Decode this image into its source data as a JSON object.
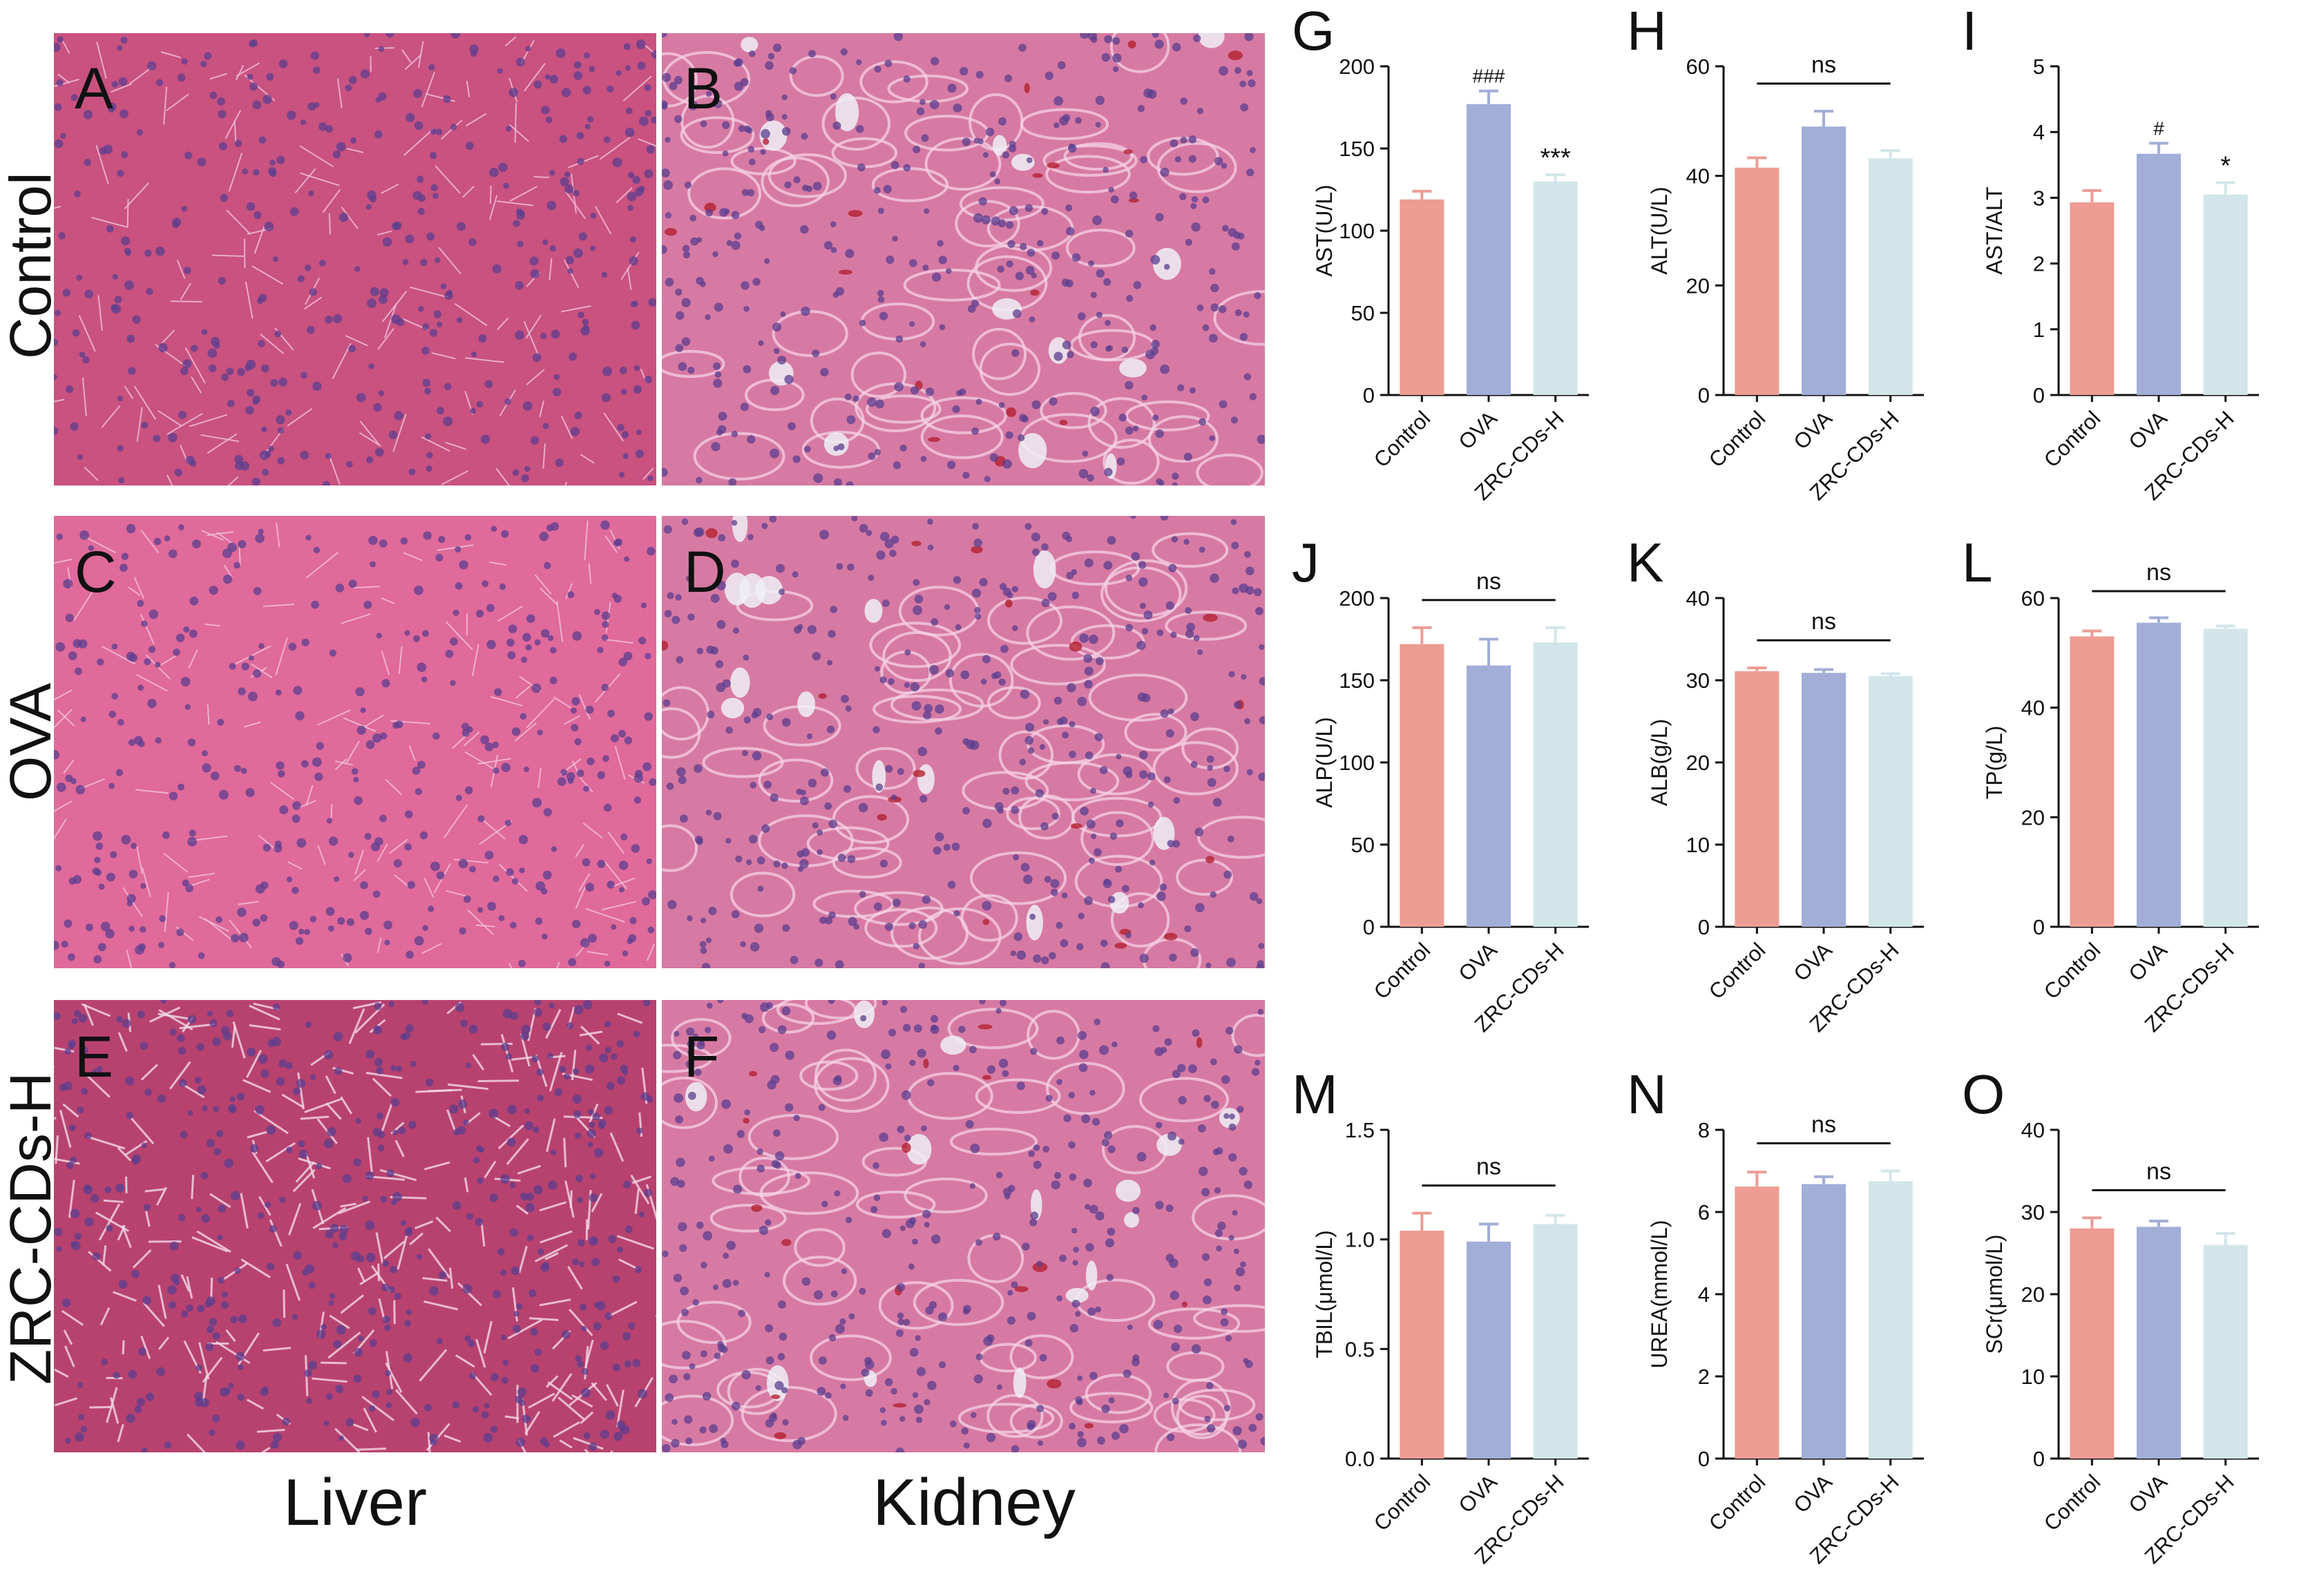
{
  "colors": {
    "control": "#ec9c93",
    "ova": "#a2aed7",
    "zrc": "#d2e6ea",
    "tissue_base": "#c9527f",
    "nuclei": "#5b3f8f",
    "axis": "#111111"
  },
  "histology": {
    "rows": [
      {
        "label": "Control",
        "liver_letter": "A",
        "kidney_letter": "B"
      },
      {
        "label": "OVA",
        "liver_letter": "C",
        "kidney_letter": "D"
      },
      {
        "label": "ZRC-CDs-H",
        "liver_letter": "E",
        "kidney_letter": "F"
      }
    ],
    "columns": [
      "Liver",
      "Kidney"
    ]
  },
  "chart_data": [
    {
      "panel": "G",
      "type": "bar",
      "categories": [
        "Control",
        "OVA",
        "ZRC-CDs-H"
      ],
      "values": [
        119,
        177,
        130
      ],
      "errors": [
        5,
        8,
        4
      ],
      "ylabel": "AST(U/L)",
      "ylim": [
        0,
        200
      ],
      "yticks": [
        0,
        50,
        100,
        150,
        200
      ],
      "annotations": [
        "",
        "###",
        "***"
      ],
      "bracket": null
    },
    {
      "panel": "H",
      "type": "bar",
      "categories": [
        "Control",
        "OVA",
        "ZRC-CDs-H"
      ],
      "values": [
        41.5,
        49,
        43.2
      ],
      "errors": [
        1.8,
        2.8,
        1.4
      ],
      "ylabel": "ALT(U/L)",
      "ylim": [
        0,
        60
      ],
      "yticks": [
        0,
        20,
        40,
        60
      ],
      "annotations": [
        "",
        "",
        ""
      ],
      "bracket": "ns"
    },
    {
      "panel": "I",
      "type": "bar",
      "categories": [
        "Control",
        "OVA",
        "ZRC-CDs-H"
      ],
      "values": [
        2.93,
        3.67,
        3.05
      ],
      "errors": [
        0.18,
        0.16,
        0.18
      ],
      "ylabel": "AST/ALT",
      "ylim": [
        0,
        5
      ],
      "yticks": [
        0,
        1,
        2,
        3,
        4,
        5
      ],
      "annotations": [
        "",
        "#",
        "*"
      ],
      "bracket": null
    },
    {
      "panel": "J",
      "type": "bar",
      "categories": [
        "Control",
        "OVA",
        "ZRC-CDs-H"
      ],
      "values": [
        172,
        159,
        173
      ],
      "errors": [
        10,
        16,
        9
      ],
      "ylabel": "ALP(U/L)",
      "ylim": [
        0,
        200
      ],
      "yticks": [
        0,
        50,
        100,
        150,
        200
      ],
      "annotations": [
        "",
        "",
        ""
      ],
      "bracket": "ns"
    },
    {
      "panel": "K",
      "type": "bar",
      "categories": [
        "Control",
        "OVA",
        "ZRC-CDs-H"
      ],
      "values": [
        31.1,
        30.9,
        30.5
      ],
      "errors": [
        0.4,
        0.4,
        0.3
      ],
      "ylabel": "ALB(g/L)",
      "ylim": [
        0,
        40
      ],
      "yticks": [
        0,
        10,
        20,
        30,
        40
      ],
      "annotations": [
        "",
        "",
        ""
      ],
      "bracket": "ns"
    },
    {
      "panel": "L",
      "type": "bar",
      "categories": [
        "Control",
        "OVA",
        "ZRC-CDs-H"
      ],
      "values": [
        53,
        55.5,
        54.4
      ],
      "errors": [
        1.0,
        0.9,
        0.5
      ],
      "ylabel": "TP(g/L)",
      "ylim": [
        0,
        60
      ],
      "yticks": [
        0,
        20,
        40,
        60
      ],
      "annotations": [
        "",
        "",
        ""
      ],
      "bracket": "ns"
    },
    {
      "panel": "M",
      "type": "bar",
      "categories": [
        "Control",
        "OVA",
        "ZRC-CDs-H"
      ],
      "values": [
        1.04,
        0.99,
        1.07
      ],
      "errors": [
        0.08,
        0.08,
        0.04
      ],
      "ylabel": "TBIL(μmol/L)",
      "ylim": [
        0,
        1.5
      ],
      "yticks": [
        0.0,
        0.5,
        1.0,
        1.5
      ],
      "ytick_labels": [
        "0.0",
        "0.5",
        "1.0",
        "1.5"
      ],
      "annotations": [
        "",
        "",
        ""
      ],
      "bracket": "ns"
    },
    {
      "panel": "N",
      "type": "bar",
      "categories": [
        "Control",
        "OVA",
        "ZRC-CDs-H"
      ],
      "values": [
        6.62,
        6.68,
        6.75
      ],
      "errors": [
        0.35,
        0.18,
        0.25
      ],
      "ylabel": "UREA(mmol/L)",
      "ylim": [
        0,
        8
      ],
      "yticks": [
        0,
        2,
        4,
        6,
        8
      ],
      "annotations": [
        "",
        "",
        ""
      ],
      "bracket": "ns"
    },
    {
      "panel": "O",
      "type": "bar",
      "categories": [
        "Control",
        "OVA",
        "ZRC-CDs-H"
      ],
      "values": [
        28,
        28.2,
        26
      ],
      "errors": [
        1.3,
        0.7,
        1.4
      ],
      "ylabel": "SCr(μmol/L)",
      "ylim": [
        0,
        40
      ],
      "yticks": [
        0,
        10,
        20,
        30,
        40
      ],
      "annotations": [
        "",
        "",
        ""
      ],
      "bracket": "ns"
    }
  ]
}
